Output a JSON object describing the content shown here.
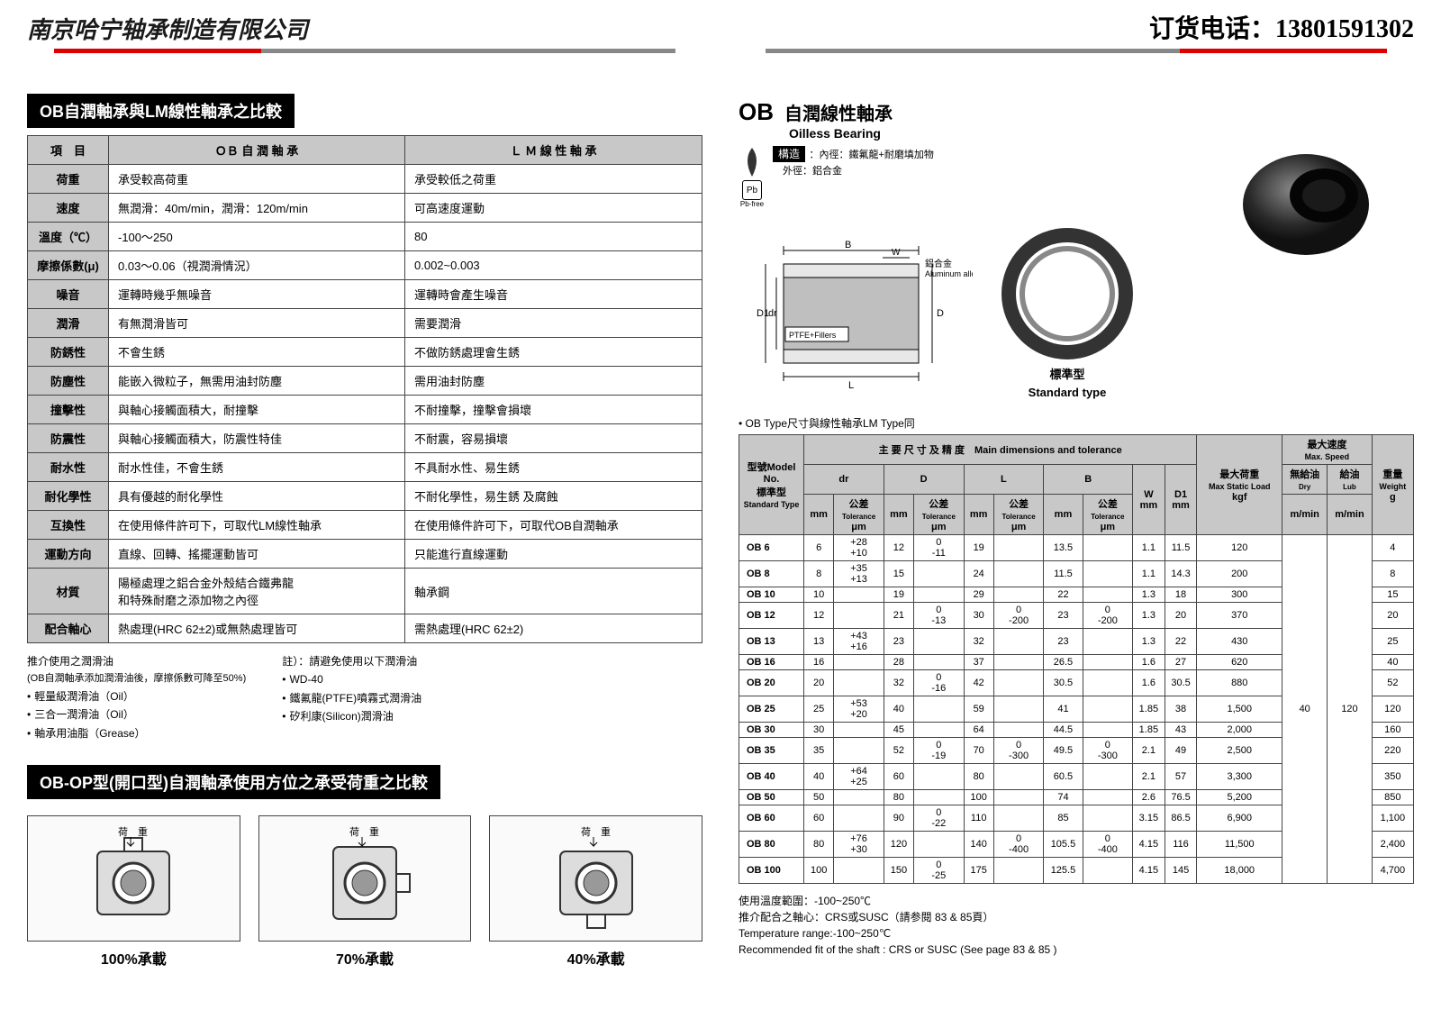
{
  "header": {
    "company": "南京哈宁轴承制造有限公司",
    "phone_label": "订货电话：",
    "phone": "13801591302"
  },
  "left": {
    "cmp_title": "OB自潤軸承與LM線性軸承之比較",
    "cmp_headers": [
      "項　目",
      "ＯＢ 自 潤 軸 承",
      "Ｌ Ｍ 線 性 軸 承"
    ],
    "cmp_rows": [
      [
        "荷重",
        "承受較高荷重",
        "承受較低之荷重"
      ],
      [
        "速度",
        "無潤滑：40m/min，潤滑：120m/min",
        "可高速度運動"
      ],
      [
        "溫度（℃）",
        "-100～250",
        "80"
      ],
      [
        "摩擦係數(μ)",
        "0.03～0.06（視潤滑情況）",
        "0.002~0.003"
      ],
      [
        "噪音",
        "運轉時幾乎無噪音",
        "運轉時會產生噪音"
      ],
      [
        "潤滑",
        "有無潤滑皆可",
        "需要潤滑"
      ],
      [
        "防銹性",
        "不會生銹",
        "不做防銹處理會生銹"
      ],
      [
        "防塵性",
        "能嵌入微粒子，無需用油封防塵",
        "需用油封防塵"
      ],
      [
        "撞擊性",
        "與軸心接觸面積大，耐撞擊",
        "不耐撞擊，撞擊會損壞"
      ],
      [
        "防震性",
        "與軸心接觸面積大，防震性特佳",
        "不耐震，容易損壞"
      ],
      [
        "耐水性",
        "耐水性佳，不會生銹",
        "不具耐水性、易生銹"
      ],
      [
        "耐化學性",
        "具有優越的耐化學性",
        "不耐化學性，易生銹 及腐蝕"
      ],
      [
        "互換性",
        "在使用條件許可下，可取代LM線性軸承",
        "在使用條件許可下，可取代OB自潤軸承"
      ],
      [
        "運動方向",
        "直線、回轉、搖擺運動皆可",
        "只能進行直線運動"
      ],
      [
        "材質",
        "陽極處理之鋁合金外殼結合鐵弗龍\n和特殊耐磨之添加物之內徑",
        "軸承鋼"
      ],
      [
        "配合軸心",
        "熱處理(HRC 62±2)或無熱處理皆可",
        "需熱處理(HRC 62±2)"
      ]
    ],
    "rec_title": "推介使用之潤滑油",
    "rec_sub": "(OB自潤軸承添加潤滑油後，摩擦係數可降至50%)",
    "rec_oils": [
      "輕量級潤滑油（Oil）",
      "三合一潤滑油（Oil）",
      "軸承用油脂（Grease）"
    ],
    "avoid_title": "註）：請避免使用以下潤滑油",
    "avoid_oils": [
      "WD-40",
      "鐵氟龍(PTFE)噴霧式潤滑油",
      "矽利康(Silicon)潤滑油"
    ],
    "load_title": "OB-OP型(開口型)自潤軸承使用方位之承受荷重之比較",
    "load_caps": [
      "100%承載",
      "70%承載",
      "40%承載"
    ],
    "load_arrow": "荷　重"
  },
  "right": {
    "ob": "OB",
    "title_jp": "自潤線性軸承",
    "sub": "Oilless Bearing",
    "pb": "Pb",
    "pbfree": "Pb-free",
    "struct_label": "構造",
    "struct1": "：內徑：鐵氟龍+耐磨填加物",
    "struct2": "　外徑：鋁合金",
    "diagram": {
      "B": "B",
      "W": "W",
      "L": "L",
      "dr": "dr",
      "D": "D",
      "D1": "D1",
      "al": "鋁合金",
      "al_en": "Aluminum alloy",
      "ptfe": "PTFE+Fillers"
    },
    "std_cap_cn": "標準型",
    "std_cap_en": "Standard type",
    "note_line": "• OB Type尺寸與線性軸承LM Type同",
    "dim_h1": "型號Model No.",
    "dim_h2": "主 要 尺 寸 及 精 度　Main dimensions and tolerance",
    "dim_h3": "最大荷重",
    "dim_h3b": "Max Static Load",
    "dim_h3c": "kgf",
    "dim_h4": "最大速度",
    "dim_h4b": "Max. Speed",
    "dim_h4c": "無給油",
    "dim_h4d": "給油",
    "dim_h4e": "Dry",
    "dim_h4f": "Lub",
    "dim_h4g": "m/min",
    "dim_h5": "重量",
    "dim_h5b": "Weight",
    "dim_h5c": "g",
    "std_type_cn": "標準型",
    "std_type_en": "Standard Type",
    "tol": "公差",
    "tol_en": "Tolerance",
    "um": "μm",
    "mm": "mm",
    "sub_dr": "dr",
    "sub_D": "D",
    "sub_L": "L",
    "sub_B": "B",
    "sub_W": "W",
    "sub_D1": "D1",
    "dim_rows": [
      {
        "m": "OB 6",
        "dr": "6",
        "dt": "+28\n+10",
        "D": "12",
        "Dt": "0\n-11",
        "L": "19",
        "Lt": "",
        "B": "13.5",
        "Bt": "",
        "W": "1.1",
        "D1": "11.5",
        "load": "120",
        "wt": "4"
      },
      {
        "m": "OB 8",
        "dr": "8",
        "dt": "+35\n+13",
        "D": "15",
        "Dt": "",
        "L": "24",
        "Lt": "",
        "B": "11.5",
        "Bt": "",
        "W": "1.1",
        "D1": "14.3",
        "load": "200",
        "wt": "8"
      },
      {
        "m": "OB 10",
        "dr": "10",
        "dt": "",
        "D": "19",
        "Dt": "",
        "L": "29",
        "Lt": "",
        "B": "22",
        "Bt": "",
        "W": "1.3",
        "D1": "18",
        "load": "300",
        "wt": "15"
      },
      {
        "m": "OB 12",
        "dr": "12",
        "dt": "",
        "D": "21",
        "Dt": "0\n-13",
        "L": "30",
        "Lt": "0\n-200",
        "B": "23",
        "Bt": "0\n-200",
        "W": "1.3",
        "D1": "20",
        "load": "370",
        "wt": "20"
      },
      {
        "m": "OB 13",
        "dr": "13",
        "dt": "+43\n+16",
        "D": "23",
        "Dt": "",
        "L": "32",
        "Lt": "",
        "B": "23",
        "Bt": "",
        "W": "1.3",
        "D1": "22",
        "load": "430",
        "wt": "25"
      },
      {
        "m": "OB 16",
        "dr": "16",
        "dt": "",
        "D": "28",
        "Dt": "",
        "L": "37",
        "Lt": "",
        "B": "26.5",
        "Bt": "",
        "W": "1.6",
        "D1": "27",
        "load": "620",
        "wt": "40"
      },
      {
        "m": "OB 20",
        "dr": "20",
        "dt": "",
        "D": "32",
        "Dt": "0\n-16",
        "L": "42",
        "Lt": "",
        "B": "30.5",
        "Bt": "",
        "W": "1.6",
        "D1": "30.5",
        "load": "880",
        "wt": "52"
      },
      {
        "m": "OB 25",
        "dr": "25",
        "dt": "+53\n+20",
        "D": "40",
        "Dt": "",
        "L": "59",
        "Lt": "",
        "B": "41",
        "Bt": "",
        "W": "1.85",
        "D1": "38",
        "load": "1,500",
        "wt": "120"
      },
      {
        "m": "OB 30",
        "dr": "30",
        "dt": "",
        "D": "45",
        "Dt": "",
        "L": "64",
        "Lt": "",
        "B": "44.5",
        "Bt": "",
        "W": "1.85",
        "D1": "43",
        "load": "2,000",
        "wt": "160"
      },
      {
        "m": "OB 35",
        "dr": "35",
        "dt": "",
        "D": "52",
        "Dt": "0\n-19",
        "L": "70",
        "Lt": "0\n-300",
        "B": "49.5",
        "Bt": "0\n-300",
        "W": "2.1",
        "D1": "49",
        "load": "2,500",
        "wt": "220"
      },
      {
        "m": "OB 40",
        "dr": "40",
        "dt": "+64\n+25",
        "D": "60",
        "Dt": "",
        "L": "80",
        "Lt": "",
        "B": "60.5",
        "Bt": "",
        "W": "2.1",
        "D1": "57",
        "load": "3,300",
        "wt": "350"
      },
      {
        "m": "OB 50",
        "dr": "50",
        "dt": "",
        "D": "80",
        "Dt": "",
        "L": "100",
        "Lt": "",
        "B": "74",
        "Bt": "",
        "W": "2.6",
        "D1": "76.5",
        "load": "5,200",
        "wt": "850"
      },
      {
        "m": "OB 60",
        "dr": "60",
        "dt": "",
        "D": "90",
        "Dt": "0\n-22",
        "L": "110",
        "Lt": "",
        "B": "85",
        "Bt": "",
        "W": "3.15",
        "D1": "86.5",
        "load": "6,900",
        "wt": "1,100"
      },
      {
        "m": "OB 80",
        "dr": "80",
        "dt": "+76\n+30",
        "D": "120",
        "Dt": "",
        "L": "140",
        "Lt": "0\n-400",
        "B": "105.5",
        "Bt": "0\n-400",
        "W": "4.15",
        "D1": "116",
        "load": "11,500",
        "wt": "2,400"
      },
      {
        "m": "OB 100",
        "dr": "100",
        "dt": "",
        "D": "150",
        "Dt": "0\n-25",
        "L": "175",
        "Lt": "",
        "B": "125.5",
        "Bt": "",
        "W": "4.15",
        "D1": "145",
        "load": "18,000",
        "wt": "4,700"
      }
    ],
    "speed_dry": "40",
    "speed_lub": "120",
    "footer": [
      "使用溫度範圍：-100~250℃",
      "推介配合之軸心：CRS或SUSC（請参閱 83 & 85頁）",
      "Temperature range:-100~250℃",
      "Recommended fit of the shaft : CRS  or  SUSC (See page 83 & 85 )"
    ]
  }
}
